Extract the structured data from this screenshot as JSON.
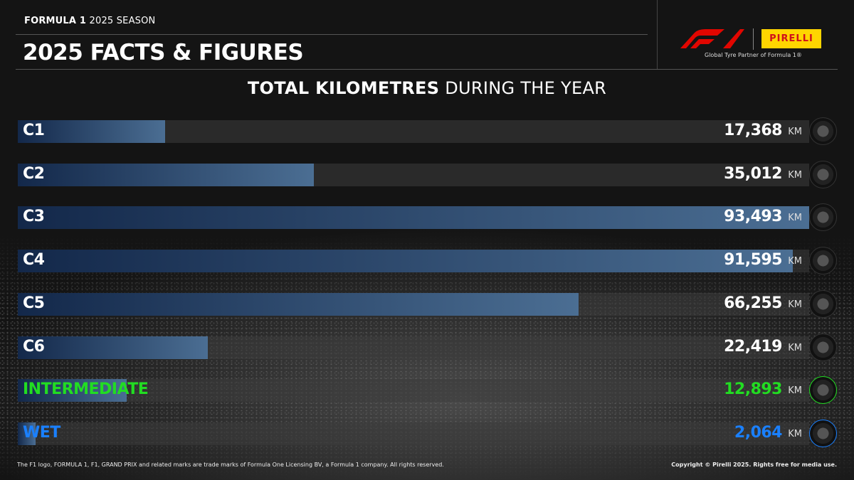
{
  "header": {
    "kicker_bold": "FORMULA 1",
    "kicker_rest": "2025 SEASON",
    "title": "2025 FACTS & FIGURES",
    "partner_text": "Global Tyre Partner of Formula 1®",
    "f1_logo": "F1",
    "pirelli_logo": "PIRELLI"
  },
  "chart_data": {
    "type": "bar",
    "orientation": "horizontal",
    "title_bold": "TOTAL KILOMETRES",
    "title_rest": "DURING THE YEAR",
    "unit": "KM",
    "categories": [
      "C1",
      "C2",
      "C3",
      "C4",
      "C5",
      "C6",
      "INTERMEDIATE",
      "WET"
    ],
    "values": [
      17368,
      35012,
      93493,
      91595,
      66255,
      22419,
      12893,
      2064
    ],
    "value_labels": [
      "17,368",
      "35,012",
      "93,493",
      "91,595",
      "66,255",
      "22,419",
      "12,893",
      "2,064"
    ],
    "label_colors": [
      "#ffffff",
      "#ffffff",
      "#ffffff",
      "#ffffff",
      "#ffffff",
      "#ffffff",
      "#22dd22",
      "#1a80ff"
    ],
    "xlim": [
      0,
      93493
    ]
  },
  "footer": {
    "left": "The F1 logo, FORMULA 1, F1, GRAND PRIX and related marks are trade marks of Formula One Licensing BV, a Formula 1 company. All rights reserved.",
    "right": "Copyright © Pirelli 2025. Rights free for media use."
  }
}
